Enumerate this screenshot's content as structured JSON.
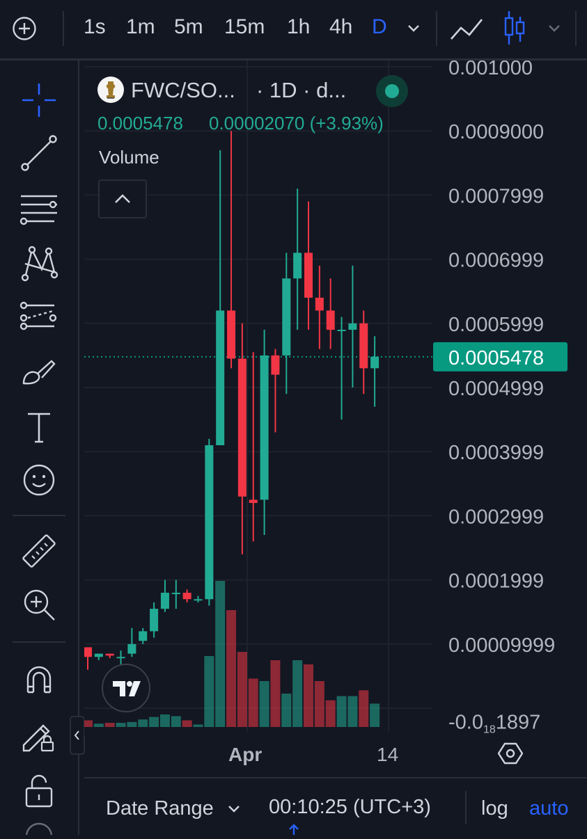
{
  "toolbar": {
    "intervals": [
      "1s",
      "1m",
      "5m",
      "15m",
      "1h",
      "4h",
      "D"
    ],
    "active_interval": "D",
    "icons": [
      "add-symbol-icon",
      "line-chart-icon",
      "candles-icon"
    ]
  },
  "sidebar": {
    "tools": [
      "crosshair-icon",
      "trend-line-icon",
      "fib-retracement-icon",
      "pattern-icon",
      "forecast-icon",
      "brush-icon",
      "text-icon",
      "emoji-icon",
      "ruler-icon",
      "zoom-in-icon",
      "magnet-icon",
      "lock-drawing-icon",
      "unlock-icon"
    ]
  },
  "legend": {
    "symbol": "FWC/SO...",
    "interval": "· 1D · d...",
    "price": "0.0005478",
    "change": "0.00002070 (+3.93%)",
    "volume_label": "Volume",
    "status_color": "#089981"
  },
  "price_axis": {
    "ticks": [
      "0.001000",
      "0.0009000",
      "0.0007999",
      "0.0006999",
      "0.0005999",
      "0.0004999",
      "0.0003999",
      "0.0002999",
      "0.0001999",
      "0.00009999"
    ],
    "last_tick_prefix": "-0.0",
    "last_tick_sub": "18",
    "last_tick_suffix": "1897",
    "current_price": "0.0005478",
    "current_price_color": "#089981"
  },
  "time_axis": {
    "labels": [
      "Apr",
      "14"
    ]
  },
  "bottom": {
    "date_range": "Date Range",
    "clock": "00:10:25 (UTC+3)",
    "log": "log",
    "auto": "auto"
  },
  "colors": {
    "up": "#22ab94",
    "down": "#f23645",
    "accent": "#2962ff",
    "bg": "#131722"
  },
  "chart_data": {
    "type": "candlestick",
    "series": [
      {
        "name": "price",
        "points": [
          {
            "o": 9.5e-05,
            "h": 9.5e-05,
            "l": 6e-05,
            "c": 8e-05
          },
          {
            "o": 8e-05,
            "h": 8.5e-05,
            "l": 7.5e-05,
            "c": 8.5e-05
          },
          {
            "o": 8.5e-05,
            "h": 8.5e-05,
            "l": 7.8e-05,
            "c": 8.2e-05
          },
          {
            "o": 7.8e-05,
            "h": 9e-05,
            "l": 6e-05,
            "c": 8e-05
          },
          {
            "o": 8.5e-05,
            "h": 0.000125,
            "l": 8e-05,
            "c": 0.0001
          },
          {
            "o": 0.000105,
            "h": 0.000125,
            "l": 0.0001,
            "c": 0.00012
          },
          {
            "o": 0.00012,
            "h": 0.000165,
            "l": 0.00011,
            "c": 0.000155
          },
          {
            "o": 0.000155,
            "h": 0.0002,
            "l": 0.00015,
            "c": 0.00018
          },
          {
            "o": 0.00018,
            "h": 0.0002,
            "l": 0.000155,
            "c": 0.00018
          },
          {
            "o": 0.00018,
            "h": 0.000185,
            "l": 0.000165,
            "c": 0.00017
          },
          {
            "o": 0.00017,
            "h": 0.000175,
            "l": 0.000165,
            "c": 0.00017
          },
          {
            "o": 0.00017,
            "h": 0.00042,
            "l": 0.00016,
            "c": 0.00041
          },
          {
            "o": 0.00041,
            "h": 0.00087,
            "l": 0.00041,
            "c": 0.00062
          },
          {
            "o": 0.00062,
            "h": 0.0009,
            "l": 0.00053,
            "c": 0.000545
          },
          {
            "o": 0.000545,
            "h": 0.0006,
            "l": 0.00024,
            "c": 0.00033
          },
          {
            "o": 0.000325,
            "h": 0.000555,
            "l": 0.00026,
            "c": 0.00032
          },
          {
            "o": 0.000325,
            "h": 0.00059,
            "l": 0.00027,
            "c": 0.00055
          },
          {
            "o": 0.00055,
            "h": 0.00056,
            "l": 0.00043,
            "c": 0.00052
          },
          {
            "o": 0.00055,
            "h": 0.00071,
            "l": 0.00049,
            "c": 0.00067
          },
          {
            "o": 0.00067,
            "h": 0.00081,
            "l": 0.00059,
            "c": 0.00071
          },
          {
            "o": 0.00071,
            "h": 0.00079,
            "l": 0.00059,
            "c": 0.00064
          },
          {
            "o": 0.00064,
            "h": 0.00069,
            "l": 0.00056,
            "c": 0.00062
          },
          {
            "o": 0.00062,
            "h": 0.00067,
            "l": 0.00056,
            "c": 0.00059
          },
          {
            "o": 0.00059,
            "h": 0.00061,
            "l": 0.00045,
            "c": 0.00059
          },
          {
            "o": 0.00059,
            "h": 0.00069,
            "l": 0.0005,
            "c": 0.0006
          },
          {
            "o": 0.0006,
            "h": 0.00062,
            "l": 0.00049,
            "c": 0.00053
          },
          {
            "o": 0.00053,
            "h": 0.00058,
            "l": 0.00047,
            "c": 0.000548
          }
        ]
      },
      {
        "name": "Volume",
        "values": [
          8,
          4,
          5,
          5,
          6,
          9,
          12,
          15,
          13,
          8,
          3,
          85,
          175,
          140,
          90,
          58,
          55,
          80,
          40,
          80,
          75,
          55,
          32,
          37,
          37,
          44,
          28
        ]
      }
    ],
    "ylim": [
      -1.897e-05,
      0.001
    ],
    "xlabels": [
      "Apr",
      "14"
    ],
    "last_price": 0.0005478
  }
}
